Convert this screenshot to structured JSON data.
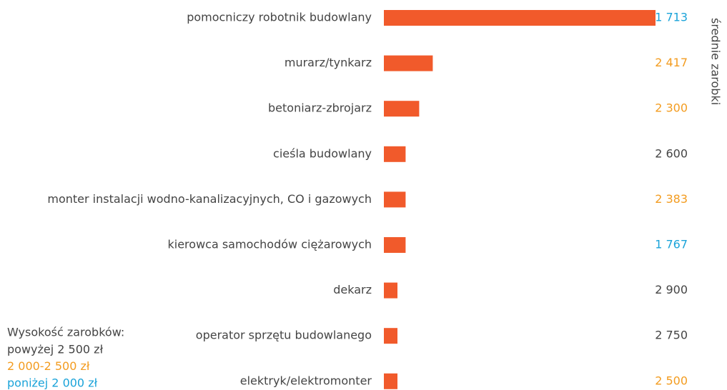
{
  "chart_data": {
    "type": "bar",
    "orientation": "horizontal",
    "categories": [
      "pomocniczy robotnik budowlany",
      "murarz/tynkarz",
      "betoniarz-zbrojarz ",
      "cieśla budowlany",
      "monter instalacji wodno-kanalizacyjnych, CO i gazowych",
      "kierowca samochodów ciężarowych",
      "dekarz",
      "operator sprzętu budowlanego",
      "elektryk/elektromonter"
    ],
    "values": [
      100,
      18,
      13,
      8,
      8,
      8,
      5,
      5,
      5
    ],
    "color": "#f15a2b",
    "salaries": {
      "name": "średnie zarobki",
      "values": [
        1713,
        2417,
        2300,
        2600,
        2383,
        1767,
        2900,
        2750,
        2500
      ],
      "value_labels": [
        "1 713",
        "2 417",
        "2 300",
        "2 600",
        "2 383",
        "1 767",
        "2 900",
        "2 750",
        "2 500"
      ],
      "colors": [
        "#1aa3d9",
        "#f39c20",
        "#f39c20",
        "#444444",
        "#f39c20",
        "#1aa3d9",
        "#444444",
        "#444444",
        "#f39c20"
      ]
    },
    "legend": {
      "title": "Wysokość zarobków:",
      "items": [
        {
          "label": "powyżej 2 500 zł",
          "color": "#444444"
        },
        {
          "label": "2 000-2 500 zł",
          "color": "#f39c20"
        },
        {
          "label": "poniżej 2 000 zł",
          "color": "#1aa3d9"
        }
      ]
    }
  }
}
